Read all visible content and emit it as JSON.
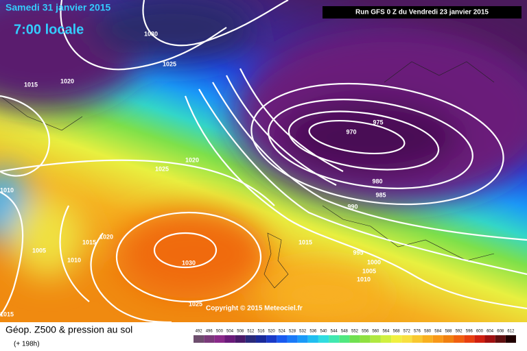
{
  "header": {
    "date": "Samedi 31 janvier 2015",
    "time": "7:00 locale",
    "run": "Run GFS 0 Z du Vendredi 23 janvier 2015"
  },
  "isobar_labels": [
    1030,
    1025,
    1015,
    1020,
    1025,
    1020,
    1010,
    1005,
    1015,
    1020,
    1010,
    1030,
    1025,
    1015,
    975,
    970,
    980,
    985,
    990,
    1015,
    995,
    1000,
    1005,
    1010
  ],
  "copyright": "Copyright © 2015 Meteociel.fr",
  "legend": {
    "title": "Géop. Z500 & pression au sol",
    "lead": "(+ 198h)",
    "levels": [
      492,
      496,
      500,
      504,
      508,
      512,
      516,
      520,
      524,
      528,
      532,
      536,
      540,
      544,
      548,
      552,
      556,
      560,
      564,
      568,
      572,
      576,
      580,
      584,
      588,
      592,
      596,
      600,
      604,
      608,
      612
    ],
    "colors": [
      "#6e4e6e",
      "#7a3a7a",
      "#8a2a8a",
      "#6a1a7a",
      "#4a1a6a",
      "#2a2a7a",
      "#1a2a9a",
      "#1a3ac8",
      "#1a5af0",
      "#1a7af8",
      "#1a9af8",
      "#20bef0",
      "#30dce0",
      "#40e8b0",
      "#50e880",
      "#70e050",
      "#90e040",
      "#b0e840",
      "#d0f040",
      "#f0f040",
      "#f8e040",
      "#f8c830",
      "#f8b020",
      "#f89818",
      "#f08010",
      "#f06010",
      "#e84010",
      "#d02010",
      "#a01010",
      "#601010",
      "#200000"
    ]
  }
}
